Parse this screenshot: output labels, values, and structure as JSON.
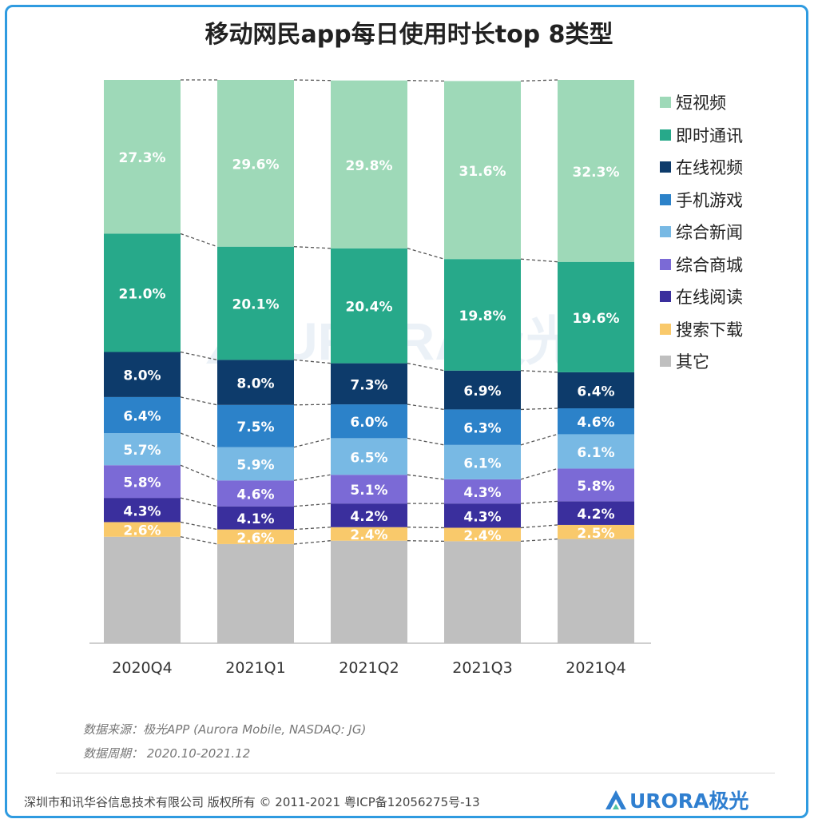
{
  "title": "移动网民app每日使用时长top 8类型",
  "chart_data": {
    "type": "bar",
    "stacked": true,
    "categories": [
      "2020Q4",
      "2021Q1",
      "2021Q2",
      "2021Q3",
      "2021Q4"
    ],
    "ylim": [
      0,
      100
    ],
    "legend_position": "right",
    "grid": false,
    "series": [
      {
        "name": "其它",
        "color": "#bfbfbf",
        "values": [
          18.9,
          17.6,
          18.2,
          18.1,
          18.5
        ],
        "labels": [
          "",
          "",
          "",
          "",
          ""
        ]
      },
      {
        "name": "搜索下载",
        "color": "#f9c96b",
        "values": [
          2.6,
          2.6,
          2.4,
          2.4,
          2.5
        ],
        "labels": [
          "2.6%",
          "2.6%",
          "2.4%",
          "2.4%",
          "2.5%"
        ]
      },
      {
        "name": "在线阅读",
        "color": "#3a2f9d",
        "values": [
          4.3,
          4.1,
          4.2,
          4.3,
          4.2
        ],
        "labels": [
          "4.3%",
          "4.1%",
          "4.2%",
          "4.3%",
          "4.2%"
        ]
      },
      {
        "name": "综合商城",
        "color": "#7b6ad6",
        "values": [
          5.8,
          4.6,
          5.1,
          4.3,
          5.8
        ],
        "labels": [
          "5.8%",
          "4.6%",
          "5.1%",
          "4.3%",
          "5.8%"
        ]
      },
      {
        "name": "综合新闻",
        "color": "#78b9e4",
        "values": [
          5.7,
          5.9,
          6.5,
          6.1,
          6.1
        ],
        "labels": [
          "5.7%",
          "5.9%",
          "6.5%",
          "6.1%",
          "6.1%"
        ]
      },
      {
        "name": "手机游戏",
        "color": "#2c82c9",
        "values": [
          6.4,
          7.5,
          6.0,
          6.3,
          4.6
        ],
        "labels": [
          "6.4%",
          "7.5%",
          "6.0%",
          "6.3%",
          "4.6%"
        ]
      },
      {
        "name": "在线视频",
        "color": "#0d3b6b",
        "values": [
          8.0,
          8.0,
          7.3,
          6.9,
          6.4
        ],
        "labels": [
          "8.0%",
          "8.0%",
          "7.3%",
          "6.9%",
          "6.4%"
        ]
      },
      {
        "name": "即时通讯",
        "color": "#27a98a",
        "values": [
          21.0,
          20.1,
          20.4,
          19.8,
          19.6
        ],
        "labels": [
          "21.0%",
          "20.1%",
          "20.4%",
          "19.8%",
          "19.6%"
        ]
      },
      {
        "name": "短视频",
        "color": "#9ed9b8",
        "values": [
          27.3,
          29.6,
          29.8,
          31.6,
          32.3
        ],
        "labels": [
          "27.3%",
          "29.6%",
          "29.8%",
          "31.6%",
          "32.3%"
        ]
      }
    ],
    "legend_order": [
      "短视频",
      "即时通讯",
      "在线视频",
      "手机游戏",
      "综合新闻",
      "综合商城",
      "在线阅读",
      "搜索下载",
      "其它"
    ]
  },
  "source": {
    "line1": "数据来源：极光APP (Aurora Mobile, NASDAQ: JG)",
    "line2": "数据周期： 2020.10-2021.12"
  },
  "watermark": "URORA极光",
  "footer": {
    "copyright": "深圳市和讯华谷信息技术有限公司 版权所有 © 2011-2021 粤ICP备12056275号-13",
    "brand": "URORA极光",
    "brand_color": "#2f7fd0"
  }
}
